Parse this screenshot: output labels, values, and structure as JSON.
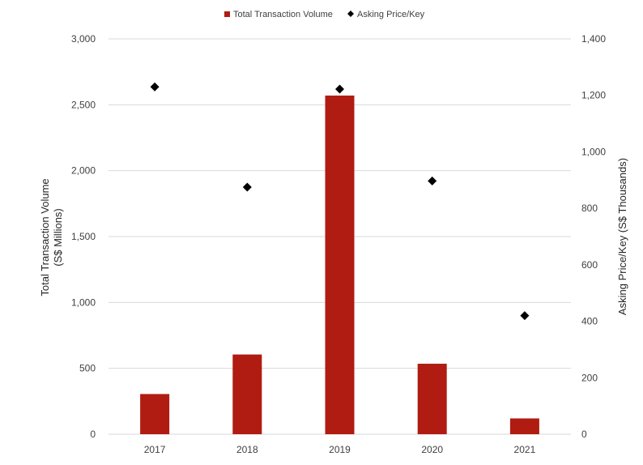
{
  "chart_data": {
    "type": "bar",
    "categories": [
      "2017",
      "2018",
      "2019",
      "2020",
      "2021"
    ],
    "series": [
      {
        "name": "Total Transaction Volume",
        "kind": "bar",
        "axis": "left",
        "color": "#b01c12",
        "values": [
          305,
          605,
          2570,
          535,
          120
        ]
      },
      {
        "name": "Asking Price/Key",
        "kind": "scatter",
        "axis": "right",
        "marker": "diamond",
        "color": "#000000",
        "values": [
          1230,
          875,
          1222,
          897,
          420
        ]
      }
    ],
    "y_left": {
      "label_line1": "Total Transaction Volume",
      "label_line2": "(S$ Millions)",
      "range": [
        0,
        3000
      ],
      "ticks": [
        0,
        500,
        1000,
        1500,
        2000,
        2500,
        3000
      ],
      "tick_labels": [
        "0",
        "500",
        "1,000",
        "1,500",
        "2,000",
        "2,500",
        "3,000"
      ]
    },
    "y_right": {
      "label": "Asking Price/Key (S$ Thousands)",
      "range": [
        0,
        1400
      ],
      "ticks": [
        0,
        200,
        400,
        600,
        800,
        1000,
        1200,
        1400
      ],
      "tick_labels": [
        "0",
        "200",
        "400",
        "600",
        "800",
        "1,000",
        "1,200",
        "1,400"
      ]
    },
    "grid": true,
    "legend_position": "top-center"
  }
}
